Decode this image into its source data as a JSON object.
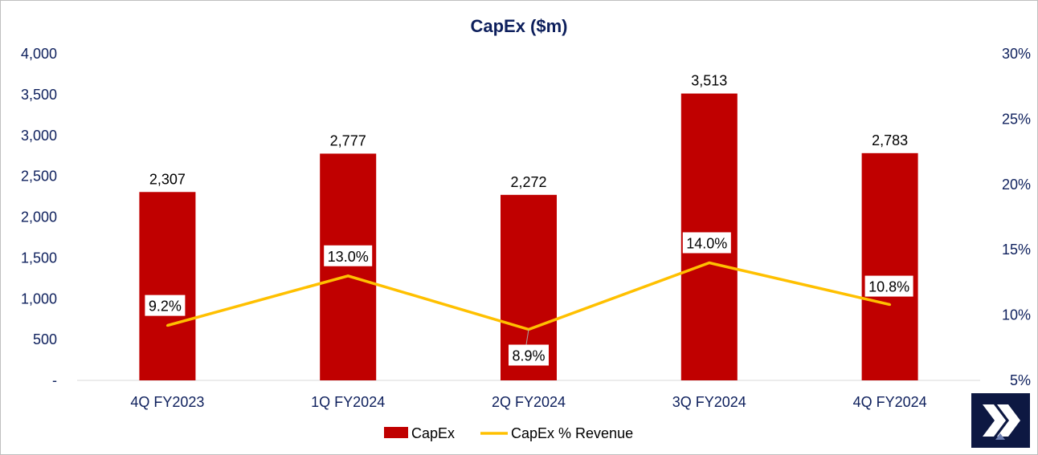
{
  "chart_data": {
    "type": "bar",
    "title": "CapEx ($m)",
    "categories": [
      "4Q FY2023",
      "1Q FY2024",
      "2Q FY2024",
      "3Q FY2024",
      "4Q FY2024"
    ],
    "series": [
      {
        "name": "CapEx",
        "type": "bar",
        "axis": "left",
        "values": [
          2307,
          2777,
          2272,
          3513,
          2783
        ],
        "labels": [
          "2,307",
          "2,777",
          "2,272",
          "3,513",
          "2,783"
        ],
        "color": "#c00000"
      },
      {
        "name": "CapEx % Revenue",
        "type": "line",
        "axis": "right",
        "values": [
          9.2,
          13.0,
          8.9,
          14.0,
          10.8
        ],
        "labels": [
          "9.2%",
          "13.0%",
          "8.9%",
          "14.0%",
          "10.8%"
        ],
        "color": "#ffc000"
      }
    ],
    "y_left": {
      "min": 0,
      "max": 4000,
      "ticks": [
        0,
        500,
        1000,
        1500,
        2000,
        2500,
        3000,
        3500,
        4000
      ],
      "tick_labels": [
        "-",
        "500",
        "1,000",
        "1,500",
        "2,000",
        "2,500",
        "3,000",
        "3,500",
        "4,000"
      ]
    },
    "y_right": {
      "min": 5,
      "max": 30,
      "ticks": [
        5,
        10,
        15,
        20,
        25,
        30
      ],
      "tick_labels": [
        "5%",
        "10%",
        "15%",
        "20%",
        "25%",
        "30%"
      ]
    },
    "xlabel": "",
    "ylabel": "",
    "grid": false,
    "legend": "bottom-center"
  },
  "colors": {
    "text": "#0d1f5c",
    "bar": "#c00000",
    "line": "#ffc000",
    "logo_bg": "#0d1842"
  },
  "logo": {
    "icon": "x-logo-icon"
  }
}
